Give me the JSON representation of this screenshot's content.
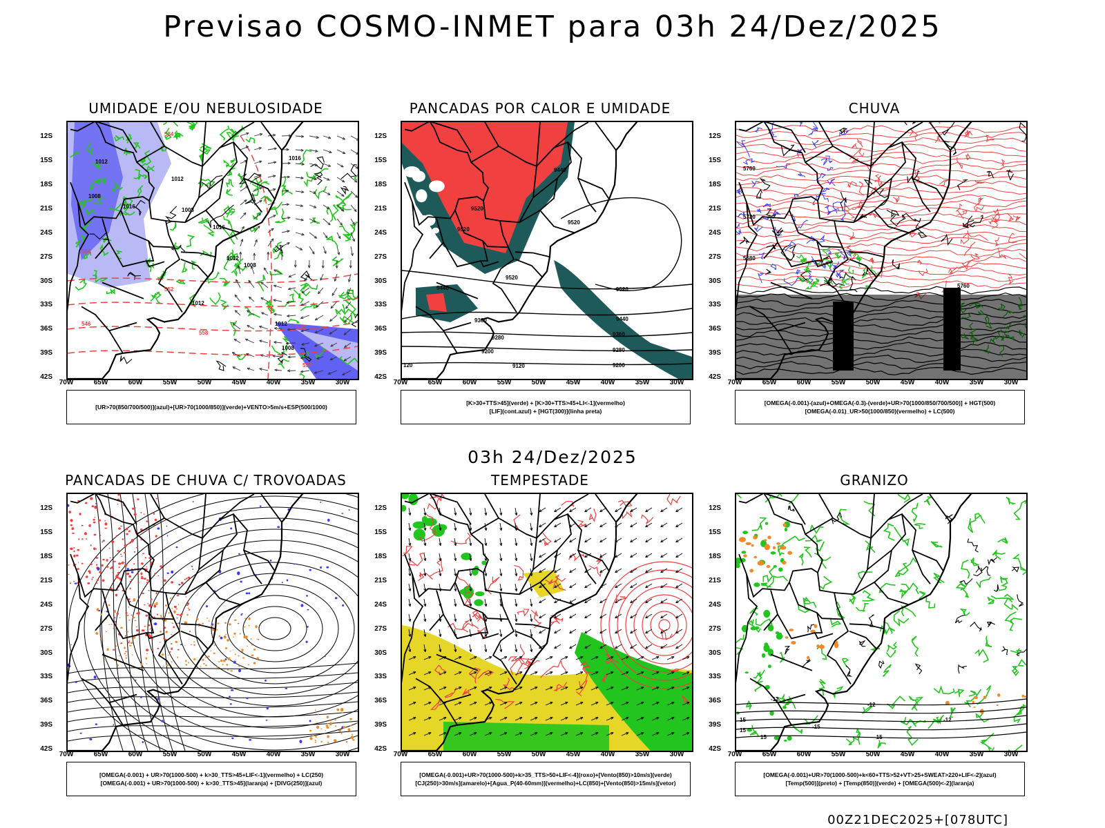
{
  "header": {
    "title": "Previsao COSMO-INMET  para 03h 24/Dez/2025"
  },
  "mid_title": "03h 24/Dez/2025",
  "footer": "00Z21DEC2025+[078UTC]",
  "axes": {
    "lat_labels": [
      "12S",
      "15S",
      "18S",
      "21S",
      "24S",
      "27S",
      "30S",
      "33S",
      "36S",
      "39S",
      "42S"
    ],
    "lon_labels": [
      "70W",
      "65W",
      "60W",
      "55W",
      "50W",
      "45W",
      "40W",
      "35W",
      "30W"
    ]
  },
  "panels": [
    {
      "title": "UMIDADE E/OU NEBULOSIDADE",
      "legend": [
        "[UR>70(850/700/500)](azul)+[UR>70(1000/850)](verde)+VENTO>5m/s+ESP(500/1000)"
      ],
      "style": "humidity",
      "contour_labels": [
        "1012",
        "1008",
        "1016",
        "1012",
        "1008",
        "1016",
        "1012",
        "1012",
        "1012",
        "1016",
        "1008",
        "1008"
      ],
      "red_labels": [
        "584",
        "564",
        "552",
        "546",
        "558",
        "564",
        "552"
      ]
    },
    {
      "title": "PANCADAS POR CALOR E UMIDADE",
      "legend": [
        "[K>30+TTS>45](verde) + [K>30+TTS>45+LI<-1](vermelho)",
        "[LIF](cont.azul) + [HGT(300)](linha preta)"
      ],
      "style": "heat",
      "contour_labels": [
        "9440",
        "9520",
        "9520",
        "9520",
        "9520",
        "9440",
        "9360",
        "9280",
        "9200",
        "9120",
        "9520",
        "9440",
        "9360",
        "9280",
        "9200",
        "120"
      ],
      "red_labels": []
    },
    {
      "title": "CHUVA",
      "legend": [
        "[OMEGA(-0.001)-(azul)+OMEGA(-0.3)-(verde)+UR>70(1000/850/700/500)] + HGT(500)",
        "[OMEGA(-0.01)_UR>50(1000/850)(vermelho) + LC(500)"
      ],
      "style": "rain",
      "contour_labels": [
        "5760",
        "5720",
        "5680",
        "5760"
      ],
      "red_labels": []
    },
    {
      "title": "PANCADAS DE CHUVA C/ TROVOADAS",
      "legend": [
        "[OMEGA(-0.001) + UR>70(1000-500) + k>30_TTS>45+LIF<-1](vermelho) + LC(250)",
        "[OMEGA(-0.001) + UR>70(1000-500) + k>30_TTS>45](laranja) + [DIVG(250)](azul)"
      ],
      "style": "storms",
      "contour_labels": [],
      "red_labels": []
    },
    {
      "title": "TEMPESTADE",
      "legend": [
        "[OMEGA(-0.001)+UR>70(1000-500)+k>35_TTS>50+LIF<-4](roxo)+[Vento(850)>10m/s](verde)",
        "[CJ(250)>30m/s](amarelo)+[Agua_P(40-60mm)](vermelho)+LC(850)+[Vento(850)>15m/s](vetor)"
      ],
      "style": "tempest",
      "contour_labels": [],
      "red_labels": []
    },
    {
      "title": "GRANIZO",
      "legend": [
        "[OMEGA(-0.001)+UR>70(1000-500)+k<60+TTS>52+VT>25+SWEAT>220+LIF<-2](azul)",
        "[Temp(500)](preto) + [Temp(850)](verde) + [OMEGA(500)<-2](laranja)"
      ],
      "style": "hail",
      "contour_labels": [
        "-12",
        "-12",
        "-15",
        "-15",
        "-12",
        "15",
        "15",
        "15"
      ],
      "red_labels": []
    }
  ],
  "colors": {
    "green": "#22c51e",
    "blue": "#3a3af0",
    "lightblue": "#b9b9f5",
    "red": "#f04040",
    "darkteal": "#1e5a5a",
    "yellow": "#e6d628",
    "orange": "#f08a28",
    "black": "#000000"
  }
}
